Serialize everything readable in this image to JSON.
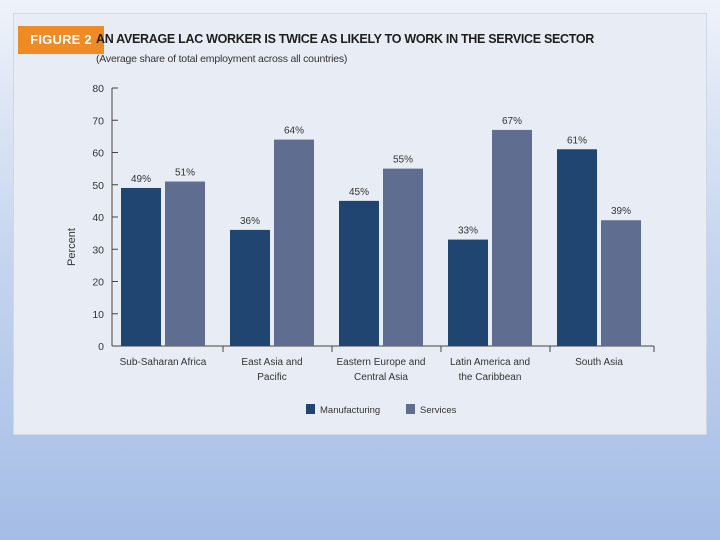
{
  "figure_label": "FIGURE 2",
  "colors": {
    "manufacturing": "#1f4570",
    "services": "#5e6d90",
    "badge": "#f08a24"
  },
  "chart_data": {
    "type": "bar",
    "title": "AN AVERAGE LAC WORKER IS TWICE AS LIKELY TO WORK IN THE SERVICE SECTOR",
    "subtitle": "(Average share of total employment across all countries)",
    "xlabel": "",
    "ylabel": "Percent",
    "ylim": [
      0,
      80
    ],
    "yticks": [
      0,
      10,
      20,
      30,
      40,
      50,
      60,
      70,
      80
    ],
    "categories": [
      [
        "Sub-Saharan Africa"
      ],
      [
        "East Asia and",
        "Pacific"
      ],
      [
        "Eastern Europe and",
        "Central Asia"
      ],
      [
        "Latin America and",
        "the Caribbean"
      ],
      [
        "South Asia"
      ]
    ],
    "series": [
      {
        "name": "Manufacturing",
        "values": [
          49,
          36,
          45,
          33,
          61
        ],
        "labels": [
          "49%",
          "36%",
          "45%",
          "33%",
          "61%"
        ]
      },
      {
        "name": "Services",
        "values": [
          51,
          64,
          55,
          67,
          39
        ],
        "labels": [
          "51%",
          "64%",
          "55%",
          "67%",
          "39%"
        ]
      }
    ],
    "legend_position": "bottom"
  }
}
